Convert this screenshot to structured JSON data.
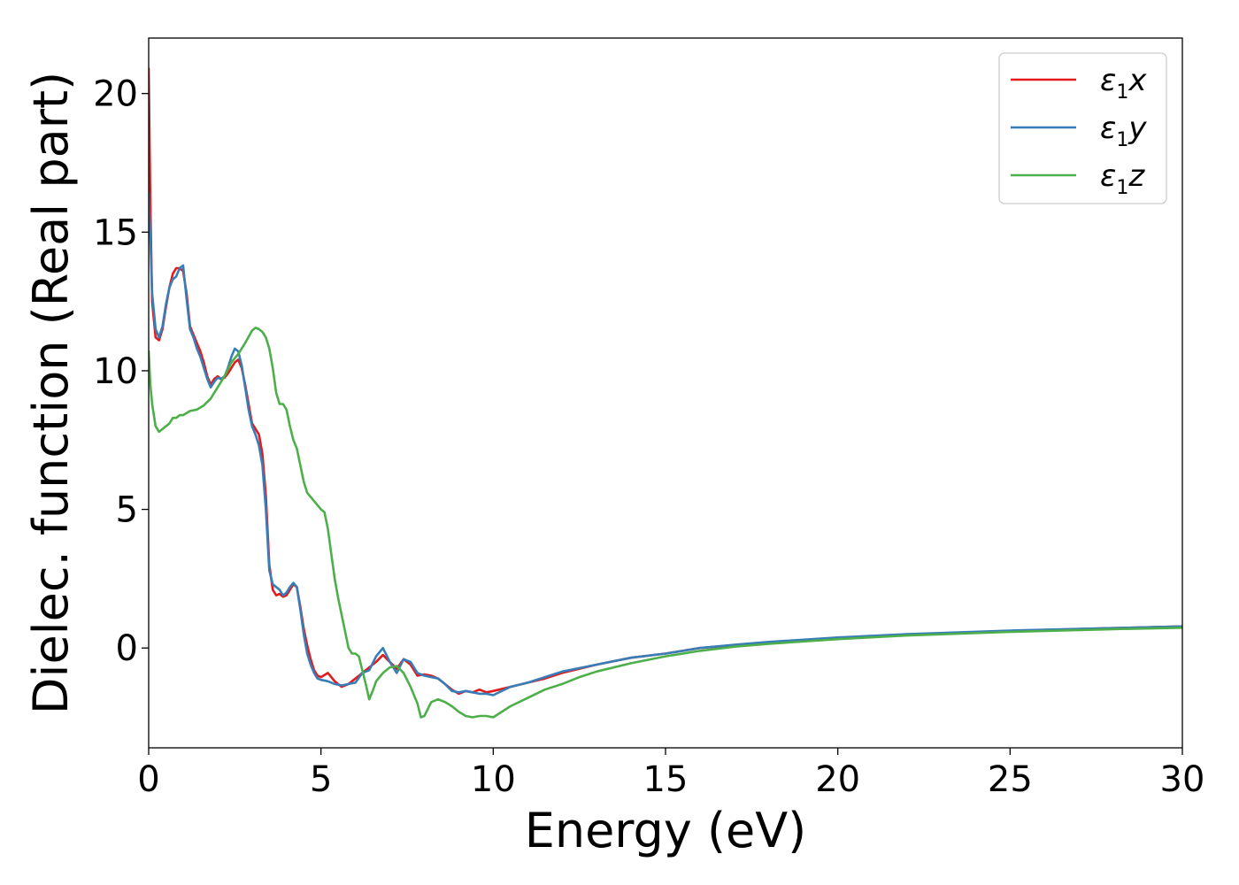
{
  "chart_data": {
    "type": "line",
    "title": "",
    "xlabel": "Energy (eV)",
    "ylabel": "Dielec. function (Real part)",
    "xlim": [
      0,
      30
    ],
    "ylim": [
      -3.6,
      22.0
    ],
    "xticks": [
      0,
      5,
      10,
      15,
      20,
      25,
      30
    ],
    "yticks": [
      0,
      5,
      10,
      15,
      20
    ],
    "grid": false,
    "legend_position": "top-right",
    "series": [
      {
        "name": "ε1x",
        "legend_symbol": "ε",
        "legend_sub": "1",
        "legend_axis": "x",
        "color": "#e41a1c",
        "x": [
          0,
          0.05,
          0.1,
          0.2,
          0.3,
          0.4,
          0.5,
          0.6,
          0.7,
          0.8,
          0.9,
          1.0,
          1.1,
          1.2,
          1.3,
          1.4,
          1.5,
          1.6,
          1.7,
          1.8,
          1.9,
          2.0,
          2.1,
          2.2,
          2.3,
          2.4,
          2.5,
          2.6,
          2.7,
          2.8,
          2.9,
          3.0,
          3.1,
          3.2,
          3.3,
          3.4,
          3.5,
          3.6,
          3.7,
          3.8,
          3.9,
          4.0,
          4.1,
          4.2,
          4.3,
          4.4,
          4.5,
          4.6,
          4.7,
          4.8,
          4.9,
          5.0,
          5.2,
          5.4,
          5.6,
          5.8,
          6.0,
          6.2,
          6.4,
          6.6,
          6.8,
          7.0,
          7.2,
          7.4,
          7.6,
          7.8,
          8.0,
          8.2,
          8.4,
          8.6,
          8.8,
          9.0,
          9.2,
          9.4,
          9.6,
          9.8,
          10.0,
          10.5,
          11.0,
          11.5,
          12.0,
          13.0,
          14.0,
          15.0,
          16.0,
          17.0,
          18.0,
          20.0,
          22.0,
          25.0,
          28.0,
          30.0
        ],
        "values": [
          20.9,
          16.0,
          12.5,
          11.2,
          11.1,
          11.5,
          12.3,
          13.0,
          13.5,
          13.7,
          13.7,
          13.6,
          12.8,
          11.6,
          11.3,
          11.0,
          10.7,
          10.3,
          9.8,
          9.5,
          9.7,
          9.8,
          9.7,
          9.75,
          9.9,
          10.1,
          10.3,
          10.4,
          10.1,
          9.5,
          8.8,
          8.1,
          7.9,
          7.7,
          7.0,
          5.5,
          3.0,
          2.1,
          1.9,
          1.95,
          1.85,
          1.9,
          2.1,
          2.3,
          2.2,
          1.5,
          0.7,
          0.1,
          -0.4,
          -0.8,
          -1.0,
          -1.05,
          -0.9,
          -1.2,
          -1.4,
          -1.3,
          -1.1,
          -0.9,
          -0.7,
          -0.5,
          -0.25,
          -0.5,
          -0.75,
          -0.4,
          -0.6,
          -1.0,
          -0.95,
          -1.0,
          -1.1,
          -1.3,
          -1.5,
          -1.65,
          -1.55,
          -1.6,
          -1.5,
          -1.6,
          -1.55,
          -1.4,
          -1.25,
          -1.1,
          -0.9,
          -0.6,
          -0.35,
          -0.2,
          0.0,
          0.1,
          0.2,
          0.35,
          0.48,
          0.62,
          0.72,
          0.78
        ]
      },
      {
        "name": "ε1y",
        "legend_symbol": "ε",
        "legend_sub": "1",
        "legend_axis": "y",
        "color": "#377eb8",
        "x": [
          0,
          0.05,
          0.1,
          0.2,
          0.3,
          0.4,
          0.5,
          0.6,
          0.7,
          0.8,
          0.9,
          1.0,
          1.1,
          1.2,
          1.3,
          1.4,
          1.5,
          1.6,
          1.7,
          1.8,
          1.9,
          2.0,
          2.1,
          2.2,
          2.3,
          2.4,
          2.5,
          2.6,
          2.7,
          2.8,
          2.9,
          3.0,
          3.1,
          3.2,
          3.3,
          3.4,
          3.5,
          3.6,
          3.7,
          3.8,
          3.9,
          4.0,
          4.1,
          4.2,
          4.3,
          4.4,
          4.5,
          4.6,
          4.7,
          4.8,
          4.9,
          5.0,
          5.2,
          5.4,
          5.6,
          5.8,
          6.0,
          6.2,
          6.4,
          6.6,
          6.8,
          7.0,
          7.2,
          7.4,
          7.6,
          7.8,
          8.0,
          8.2,
          8.4,
          8.6,
          8.8,
          9.0,
          9.2,
          9.4,
          9.6,
          9.8,
          10.0,
          10.5,
          11.0,
          11.5,
          12.0,
          13.0,
          14.0,
          15.0,
          16.0,
          17.0,
          18.0,
          20.0,
          22.0,
          25.0,
          28.0,
          30.0
        ],
        "values": [
          16.4,
          14.8,
          12.8,
          11.5,
          11.2,
          11.6,
          12.4,
          13.0,
          13.3,
          13.4,
          13.7,
          13.8,
          12.6,
          11.5,
          11.2,
          10.8,
          10.5,
          10.1,
          9.7,
          9.4,
          9.6,
          9.75,
          9.7,
          9.8,
          10.1,
          10.5,
          10.8,
          10.7,
          10.2,
          9.4,
          8.6,
          8.0,
          7.7,
          7.3,
          6.6,
          5.0,
          2.8,
          2.3,
          2.2,
          2.1,
          1.9,
          2.0,
          2.2,
          2.35,
          2.2,
          1.4,
          0.5,
          -0.2,
          -0.6,
          -0.9,
          -1.1,
          -1.15,
          -1.2,
          -1.3,
          -1.35,
          -1.3,
          -1.25,
          -0.9,
          -0.8,
          -0.3,
          0.0,
          -0.5,
          -0.9,
          -0.4,
          -0.5,
          -0.9,
          -1.0,
          -1.05,
          -1.1,
          -1.3,
          -1.55,
          -1.6,
          -1.55,
          -1.6,
          -1.65,
          -1.65,
          -1.7,
          -1.4,
          -1.25,
          -1.05,
          -0.85,
          -0.6,
          -0.35,
          -0.2,
          0.0,
          0.12,
          0.22,
          0.38,
          0.5,
          0.63,
          0.72,
          0.78
        ]
      },
      {
        "name": "ε1z",
        "legend_symbol": "ε",
        "legend_sub": "1",
        "legend_axis": "z",
        "color": "#4daf4a",
        "x": [
          0,
          0.05,
          0.1,
          0.2,
          0.3,
          0.4,
          0.5,
          0.6,
          0.7,
          0.8,
          0.9,
          1.0,
          1.2,
          1.4,
          1.6,
          1.8,
          2.0,
          2.2,
          2.4,
          2.6,
          2.8,
          3.0,
          3.1,
          3.2,
          3.3,
          3.4,
          3.5,
          3.6,
          3.7,
          3.8,
          3.9,
          4.0,
          4.1,
          4.2,
          4.3,
          4.4,
          4.5,
          4.6,
          4.8,
          5.0,
          5.1,
          5.2,
          5.3,
          5.4,
          5.5,
          5.6,
          5.7,
          5.8,
          5.9,
          6.0,
          6.1,
          6.2,
          6.3,
          6.4,
          6.5,
          6.6,
          6.8,
          7.0,
          7.2,
          7.4,
          7.6,
          7.8,
          7.9,
          8.0,
          8.2,
          8.4,
          8.6,
          8.8,
          9.0,
          9.2,
          9.4,
          9.6,
          9.8,
          10.0,
          10.5,
          11.0,
          11.5,
          12.0,
          12.5,
          13.0,
          14.0,
          15.0,
          16.0,
          17.0,
          18.0,
          20.0,
          22.0,
          25.0,
          28.0,
          30.0
        ],
        "values": [
          10.7,
          9.5,
          8.8,
          8.0,
          7.8,
          7.9,
          8.0,
          8.1,
          8.3,
          8.3,
          8.4,
          8.4,
          8.55,
          8.6,
          8.75,
          9.0,
          9.4,
          9.8,
          10.3,
          10.6,
          11.0,
          11.45,
          11.55,
          11.5,
          11.4,
          11.2,
          10.8,
          10.1,
          9.2,
          8.8,
          8.8,
          8.6,
          8.0,
          7.5,
          7.2,
          6.6,
          6.0,
          5.6,
          5.3,
          5.0,
          4.9,
          4.3,
          3.4,
          2.5,
          1.8,
          1.2,
          0.6,
          0.0,
          -0.2,
          -0.2,
          -0.3,
          -0.8,
          -1.3,
          -1.85,
          -1.55,
          -1.2,
          -0.9,
          -0.7,
          -0.65,
          -0.9,
          -1.4,
          -2.0,
          -2.5,
          -2.45,
          -1.95,
          -1.85,
          -1.95,
          -2.1,
          -2.3,
          -2.45,
          -2.5,
          -2.45,
          -2.45,
          -2.5,
          -2.1,
          -1.8,
          -1.5,
          -1.3,
          -1.05,
          -0.85,
          -0.55,
          -0.3,
          -0.1,
          0.05,
          0.15,
          0.32,
          0.45,
          0.58,
          0.68,
          0.73
        ]
      }
    ]
  }
}
